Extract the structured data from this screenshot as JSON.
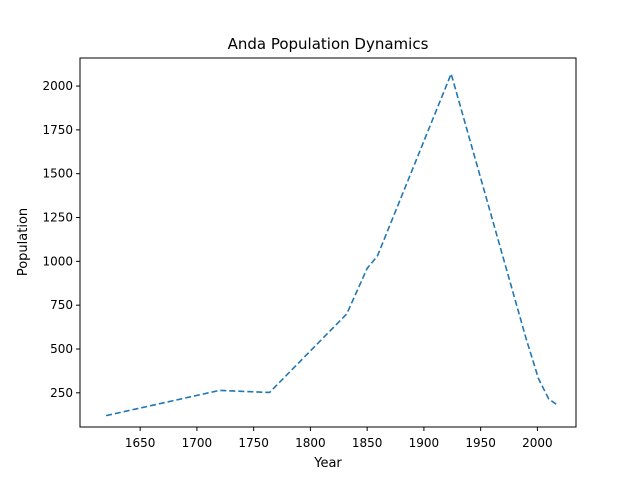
{
  "chart_data": {
    "type": "line",
    "title": "Anda Population Dynamics",
    "xlabel": "Year",
    "ylabel": "Population",
    "xlim": [
      1597,
      2034
    ],
    "ylim": [
      55,
      2160
    ],
    "xticks": [
      1650,
      1700,
      1750,
      1800,
      1850,
      1900,
      1950,
      2000
    ],
    "yticks": [
      250,
      500,
      750,
      1000,
      1250,
      1500,
      1750,
      2000
    ],
    "grid": false,
    "line_style": "dashed",
    "line_color": "#1f77b4",
    "series": [
      {
        "x": [
          1620,
          1720,
          1764,
          1832,
          1850,
          1859,
          1924,
          1990,
          2001,
          2010,
          2018
        ],
        "y": [
          120,
          264,
          252,
          700,
          960,
          1030,
          2070,
          560,
          330,
          215,
          178
        ]
      }
    ]
  }
}
